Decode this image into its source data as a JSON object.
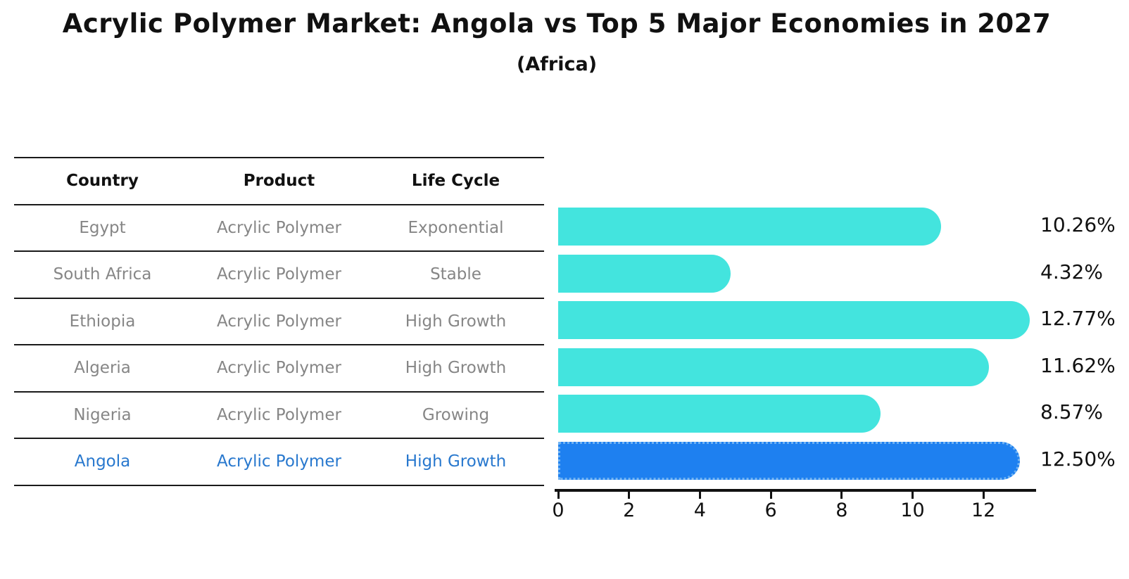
{
  "title": "Acrylic Polymer Market: Angola vs Top 5 Major Economies in 2027",
  "subtitle": "(Africa)",
  "table": {
    "headers": [
      "Country",
      "Product",
      "Life Cycle"
    ],
    "rows": [
      {
        "country": "Egypt",
        "product": "Acrylic Polymer",
        "life_cycle": "Exponential",
        "highlight": false
      },
      {
        "country": "South Africa",
        "product": "Acrylic Polymer",
        "life_cycle": "Stable",
        "highlight": false
      },
      {
        "country": "Ethiopia",
        "product": "Acrylic Polymer",
        "life_cycle": "High Growth",
        "highlight": false
      },
      {
        "country": "Algeria",
        "product": "Acrylic Polymer",
        "life_cycle": "High Growth",
        "highlight": false
      },
      {
        "country": "Nigeria",
        "product": "Acrylic Polymer",
        "life_cycle": "Growing",
        "highlight": false
      },
      {
        "country": "Angola",
        "product": "Acrylic Polymer",
        "life_cycle": "High Growth",
        "highlight": true
      }
    ]
  },
  "chart_data": {
    "type": "bar",
    "orientation": "horizontal",
    "title": "Acrylic Polymer Market: Angola vs Top 5 Major Economies in 2027",
    "subtitle": "(Africa)",
    "categories": [
      "Egypt",
      "South Africa",
      "Ethiopia",
      "Algeria",
      "Nigeria",
      "Angola"
    ],
    "values": [
      10.26,
      4.32,
      12.77,
      11.62,
      8.57,
      12.5
    ],
    "value_labels": [
      "10.26%",
      "4.32%",
      "12.77%",
      "11.62%",
      "8.57%",
      "12.50%"
    ],
    "x_ticks": [
      0,
      2,
      4,
      6,
      8,
      10,
      12
    ],
    "xlim": [
      0,
      13.4
    ],
    "xlabel": "",
    "ylabel": "",
    "grid": false,
    "legend": "none",
    "highlight_index": 5,
    "bar_color": "#43E4DE",
    "highlight_color": "#1E80F0",
    "highlight_border_color": "#6FB2F2",
    "axis_color": "#111111",
    "value_label_color": "#111111"
  },
  "colors": {
    "background": "#FFFFFF",
    "table_line": "#1A1A1A",
    "table_text": "#868686",
    "table_header_text": "#111111",
    "highlight_text": "#2878CE"
  }
}
